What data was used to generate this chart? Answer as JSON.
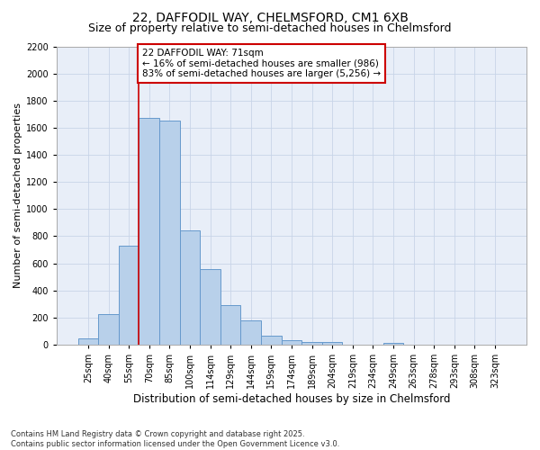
{
  "title": "22, DAFFODIL WAY, CHELMSFORD, CM1 6XB",
  "subtitle": "Size of property relative to semi-detached houses in Chelmsford",
  "xlabel": "Distribution of semi-detached houses by size in Chelmsford",
  "ylabel": "Number of semi-detached properties",
  "categories": [
    "25sqm",
    "40sqm",
    "55sqm",
    "70sqm",
    "85sqm",
    "100sqm",
    "114sqm",
    "129sqm",
    "144sqm",
    "159sqm",
    "174sqm",
    "189sqm",
    "204sqm",
    "219sqm",
    "234sqm",
    "249sqm",
    "263sqm",
    "278sqm",
    "293sqm",
    "308sqm",
    "323sqm"
  ],
  "values": [
    45,
    225,
    730,
    1675,
    1655,
    840,
    560,
    295,
    180,
    65,
    35,
    22,
    18,
    0,
    0,
    12,
    0,
    0,
    0,
    0,
    0
  ],
  "bar_color": "#b8d0ea",
  "bar_edge_color": "#6699cc",
  "vline_color": "#cc0000",
  "vline_x_index": 3,
  "annotation_text": "22 DAFFODIL WAY: 71sqm\n← 16% of semi-detached houses are smaller (986)\n83% of semi-detached houses are larger (5,256) →",
  "annotation_box_facecolor": "#ffffff",
  "annotation_box_edgecolor": "#cc0000",
  "ylim": [
    0,
    2200
  ],
  "yticks": [
    0,
    200,
    400,
    600,
    800,
    1000,
    1200,
    1400,
    1600,
    1800,
    2000,
    2200
  ],
  "grid_color": "#c8d4e8",
  "bg_color": "#e8eef8",
  "footer": "Contains HM Land Registry data © Crown copyright and database right 2025.\nContains public sector information licensed under the Open Government Licence v3.0.",
  "title_fontsize": 10,
  "subtitle_fontsize": 9,
  "xlabel_fontsize": 8.5,
  "ylabel_fontsize": 8,
  "tick_fontsize": 7,
  "annotation_fontsize": 7.5,
  "footer_fontsize": 6
}
